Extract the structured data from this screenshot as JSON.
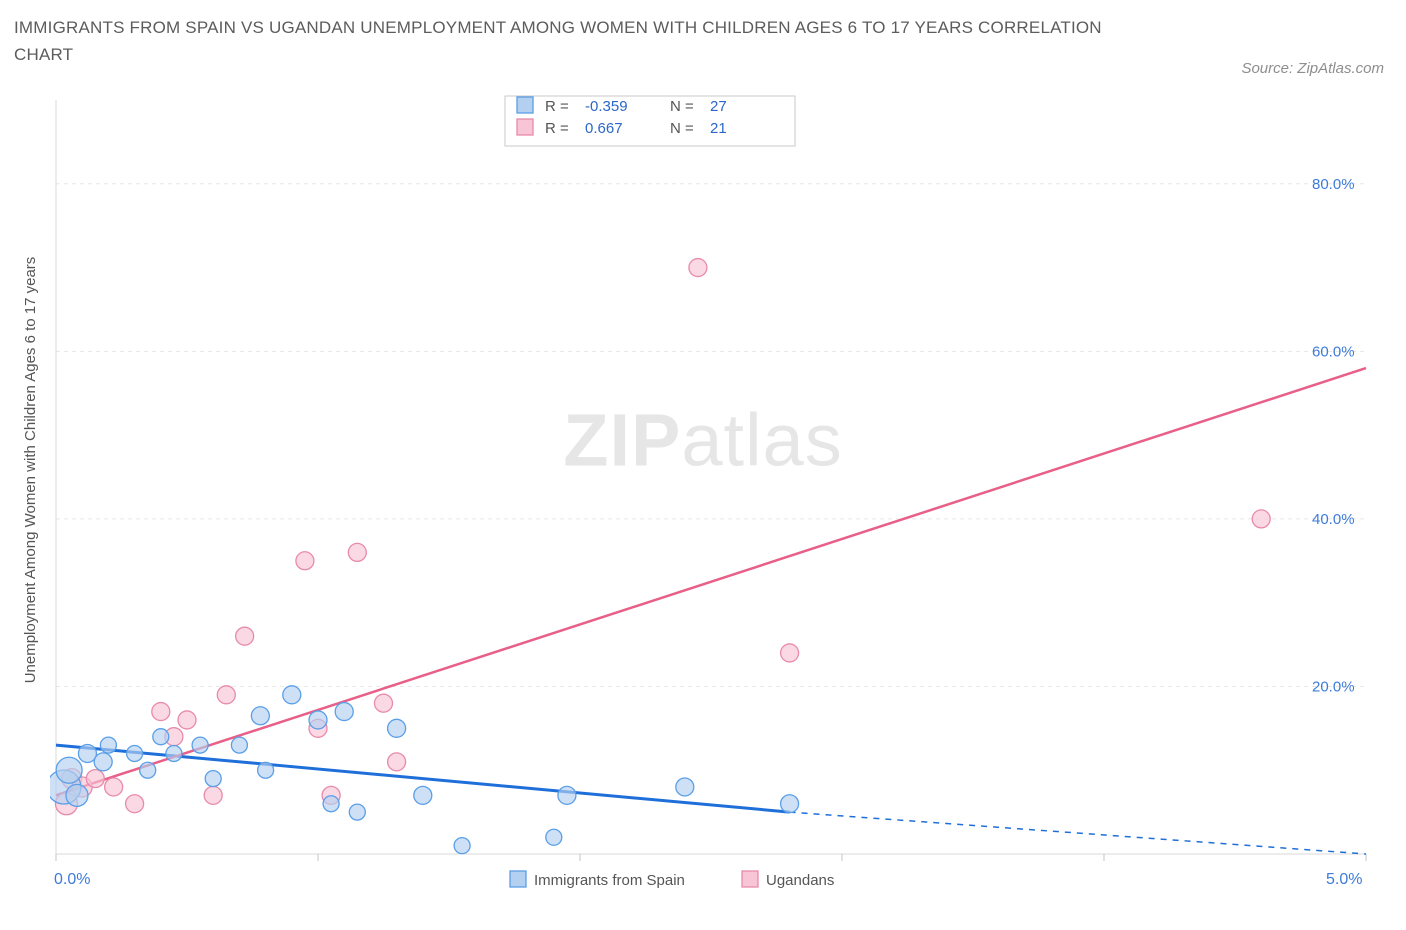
{
  "title": "IMMIGRANTS FROM SPAIN VS UGANDAN UNEMPLOYMENT AMONG WOMEN WITH CHILDREN AGES 6 TO 17 YEARS CORRELATION CHART",
  "source": "Source: ZipAtlas.com",
  "ylabel": "Unemployment Among Women with Children Ages 6 to 17 years",
  "watermark_a": "ZIP",
  "watermark_b": "atlas",
  "chart": {
    "type": "scatter",
    "background_color": "#ffffff",
    "grid_color": "#e8e8e8",
    "axis_color": "#d8d8d8",
    "xlim": [
      0,
      5
    ],
    "ylim": [
      0,
      90
    ],
    "x_ticks": [
      0,
      1,
      2,
      3,
      4,
      5
    ],
    "y_grid": [
      20,
      40,
      60,
      80
    ],
    "x_tick_labels": {
      "0": "0.0%",
      "5": "5.0%"
    },
    "y_tick_labels": {
      "20": "20.0%",
      "40": "40.0%",
      "60": "60.0%",
      "80": "80.0%"
    },
    "tick_label_color": "#3d7bd9",
    "tick_label_fontsize": 15,
    "stats_legend": {
      "position": "top-center",
      "border_color": "#c9c9c9",
      "rows": [
        {
          "swatch_fill": "#b3d0f0",
          "swatch_stroke": "#5a9fe8",
          "r_label": "R =",
          "r_value": "-0.359",
          "n_label": "N =",
          "n_value": "27"
        },
        {
          "swatch_fill": "#f7c5d5",
          "swatch_stroke": "#e88aab",
          "r_label": "R =",
          "r_value": "0.667",
          "n_label": "N =",
          "n_value": "21"
        }
      ],
      "text_color": "#2b67c7",
      "label_color": "#555"
    },
    "bottom_legend": {
      "items": [
        {
          "swatch_fill": "#b3d0f0",
          "swatch_stroke": "#5a9fe8",
          "label": "Immigrants from Spain"
        },
        {
          "swatch_fill": "#f7c5d5",
          "swatch_stroke": "#e88aab",
          "label": "Ugandans"
        }
      ],
      "text_color": "#555"
    },
    "series": [
      {
        "name": "Immigrants from Spain",
        "color_fill": "#b3d0f0",
        "color_stroke": "#5a9fe8",
        "marker_radius": 9,
        "trend": {
          "color": "#1e6fd9",
          "width": 3,
          "start": [
            0,
            13
          ],
          "end": [
            2.8,
            5
          ],
          "dashed_end": [
            5,
            0
          ]
        },
        "points": [
          {
            "x": 0.03,
            "y": 8,
            "r": 17
          },
          {
            "x": 0.05,
            "y": 10,
            "r": 13
          },
          {
            "x": 0.08,
            "y": 7,
            "r": 11
          },
          {
            "x": 0.12,
            "y": 12,
            "r": 9
          },
          {
            "x": 0.18,
            "y": 11,
            "r": 9
          },
          {
            "x": 0.2,
            "y": 13,
            "r": 8
          },
          {
            "x": 0.3,
            "y": 12,
            "r": 8
          },
          {
            "x": 0.35,
            "y": 10,
            "r": 8
          },
          {
            "x": 0.4,
            "y": 14,
            "r": 8
          },
          {
            "x": 0.45,
            "y": 12,
            "r": 8
          },
          {
            "x": 0.55,
            "y": 13,
            "r": 8
          },
          {
            "x": 0.6,
            "y": 9,
            "r": 8
          },
          {
            "x": 0.7,
            "y": 13,
            "r": 8
          },
          {
            "x": 0.78,
            "y": 16.5,
            "r": 9
          },
          {
            "x": 0.8,
            "y": 10,
            "r": 8
          },
          {
            "x": 0.9,
            "y": 19,
            "r": 9
          },
          {
            "x": 1.0,
            "y": 16,
            "r": 9
          },
          {
            "x": 1.05,
            "y": 6,
            "r": 8
          },
          {
            "x": 1.1,
            "y": 17,
            "r": 9
          },
          {
            "x": 1.15,
            "y": 5,
            "r": 8
          },
          {
            "x": 1.3,
            "y": 15,
            "r": 9
          },
          {
            "x": 1.4,
            "y": 7,
            "r": 9
          },
          {
            "x": 1.55,
            "y": 1,
            "r": 8
          },
          {
            "x": 1.9,
            "y": 2,
            "r": 8
          },
          {
            "x": 1.95,
            "y": 7,
            "r": 9
          },
          {
            "x": 2.4,
            "y": 8,
            "r": 9
          },
          {
            "x": 2.8,
            "y": 6,
            "r": 9
          }
        ]
      },
      {
        "name": "Ugandans",
        "color_fill": "#f7c5d5",
        "color_stroke": "#e88aab",
        "marker_radius": 9,
        "trend": {
          "color": "#e85f88",
          "width": 2.5,
          "start": [
            0,
            7
          ],
          "end": [
            5,
            58
          ]
        },
        "points": [
          {
            "x": 0.04,
            "y": 6,
            "r": 11
          },
          {
            "x": 0.06,
            "y": 9,
            "r": 10
          },
          {
            "x": 0.1,
            "y": 8,
            "r": 10
          },
          {
            "x": 0.15,
            "y": 9,
            "r": 9
          },
          {
            "x": 0.22,
            "y": 8,
            "r": 9
          },
          {
            "x": 0.3,
            "y": 6,
            "r": 9
          },
          {
            "x": 0.4,
            "y": 17,
            "r": 9
          },
          {
            "x": 0.45,
            "y": 14,
            "r": 9
          },
          {
            "x": 0.5,
            "y": 16,
            "r": 9
          },
          {
            "x": 0.6,
            "y": 7,
            "r": 9
          },
          {
            "x": 0.65,
            "y": 19,
            "r": 9
          },
          {
            "x": 0.72,
            "y": 26,
            "r": 9
          },
          {
            "x": 0.95,
            "y": 35,
            "r": 9
          },
          {
            "x": 1.0,
            "y": 15,
            "r": 9
          },
          {
            "x": 1.05,
            "y": 7,
            "r": 9
          },
          {
            "x": 1.15,
            "y": 36,
            "r": 9
          },
          {
            "x": 1.25,
            "y": 18,
            "r": 9
          },
          {
            "x": 1.3,
            "y": 11,
            "r": 9
          },
          {
            "x": 2.45,
            "y": 70,
            "r": 9
          },
          {
            "x": 2.8,
            "y": 24,
            "r": 9
          },
          {
            "x": 4.6,
            "y": 40,
            "r": 9
          }
        ]
      }
    ]
  }
}
